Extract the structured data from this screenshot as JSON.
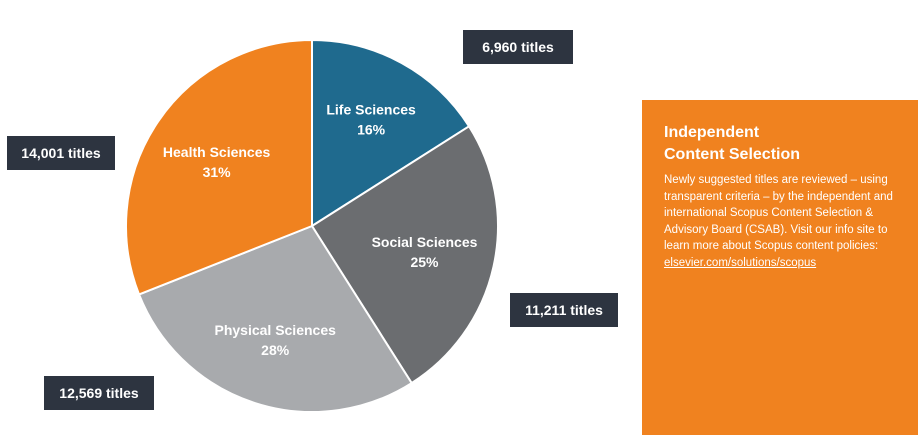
{
  "chart_data": {
    "type": "pie",
    "title": "",
    "slices": [
      {
        "label": "Life Sciences",
        "percent": 16,
        "percent_label": "16%",
        "titles_label": "6,960 titles",
        "titles": 6960,
        "color": "#1f6a8e"
      },
      {
        "label": "Social Sciences",
        "percent": 25,
        "percent_label": "25%",
        "titles_label": "11,211 titles",
        "titles": 11211,
        "color": "#6b6d70"
      },
      {
        "label": "Physical Sciences",
        "percent": 28,
        "percent_label": "28%",
        "titles_label": "12,569 titles",
        "titles": 12569,
        "color": "#a8aaad"
      },
      {
        "label": "Health Sciences",
        "percent": 31,
        "percent_label": "31%",
        "titles_label": "14,001 titles",
        "titles": 14001,
        "color": "#f0821f"
      }
    ]
  },
  "info_box": {
    "title_line1": "Independent",
    "title_line2": "Content Selection",
    "body": "Newly suggested titles are reviewed – using transparent criteria – by the independent and international Scopus Content Selection & Advisory Board (CSAB). Visit our info site to learn more about Scopus content policies:",
    "link": "elsevier.com/solutions/scopus",
    "color": "#f0821f"
  }
}
